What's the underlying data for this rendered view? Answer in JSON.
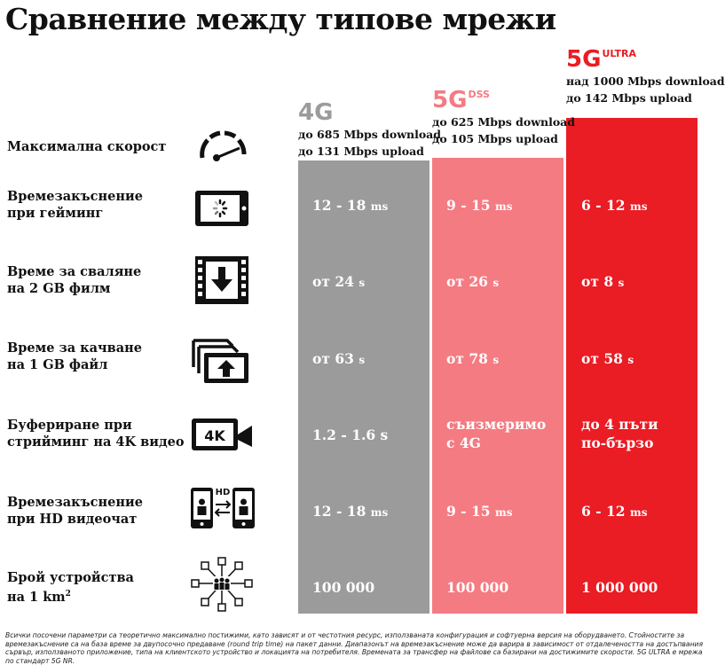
{
  "title": "Сравнение между типове мрежи",
  "columns": [
    {
      "name": "4G",
      "sup": "",
      "download": "до 685 Mbps download",
      "upload": "до 131 Mbps upload",
      "color": "#9b9b9b"
    },
    {
      "name": "5G",
      "sup": "DSS",
      "download": "до 625 Mbps download",
      "upload": "до 105 Mbps upload",
      "color": "#f47b82"
    },
    {
      "name": "5G",
      "sup": "ULTRA",
      "download": "над 1000 Mbps download",
      "upload": "до 142 Mbps upload",
      "color": "#ea1c24"
    }
  ],
  "rows": [
    {
      "label": "Максимална скорост",
      "icon": "speedometer-icon"
    },
    {
      "label_l1": "Времезакъснение",
      "label_l2": "при гейминг",
      "icon": "gaming-phone-icon",
      "values": [
        {
          "num": "12 - 18",
          "unit": "ms"
        },
        {
          "num": "9 - 15",
          "unit": "ms"
        },
        {
          "num": "6 - 12",
          "unit": "ms"
        }
      ]
    },
    {
      "label_l1": "Време за сваляне",
      "label_l2": "на 2 GB филм",
      "icon": "film-download-icon",
      "values": [
        {
          "num": "от 24",
          "unit": "s"
        },
        {
          "num": "от 26",
          "unit": "s"
        },
        {
          "num": "от 8",
          "unit": "s"
        }
      ]
    },
    {
      "label_l1": "Време за качване",
      "label_l2": "на 1 GB файл",
      "icon": "file-upload-icon",
      "values": [
        {
          "num": "от 63",
          "unit": "s"
        },
        {
          "num": "от 78",
          "unit": "s"
        },
        {
          "num": "от 58",
          "unit": "s"
        }
      ]
    },
    {
      "label_l1": "Буфериране при",
      "label_l2": "стрийминг на 4K видео",
      "icon": "4k-camera-icon",
      "icon_text": "4K",
      "values": [
        {
          "l1": "1.2 - 1.6 s"
        },
        {
          "l1": "съизмеримо",
          "l2": "с 4G"
        },
        {
          "l1": "до 4 пъти",
          "l2": "по-бързо"
        }
      ]
    },
    {
      "label_l1": "Времезакъснение",
      "label_l2": "при HD видеочат",
      "icon": "hd-videochat-icon",
      "icon_text": "HD",
      "values": [
        {
          "num": "12 - 18",
          "unit": "ms"
        },
        {
          "num": "9 - 15",
          "unit": "ms"
        },
        {
          "num": "6 - 12",
          "unit": "ms"
        }
      ]
    },
    {
      "label_l1": "Брой устройства",
      "label_l2": "на 1 km",
      "label_sup": "2",
      "icon": "devices-network-icon",
      "values": [
        {
          "l1": "100 000"
        },
        {
          "l1": "100 000"
        },
        {
          "l1": "1 000 000"
        }
      ]
    }
  ],
  "footnote": "Всички посочени параметри са теоретично максимално постижими, като зависят и от честотния ресурс, използваната конфигурация и софтуерна версия на оборудването. Стойностите за времезакъснение са на база време за двупосочно предаване (round trip time) на пакет данни. Диапазонът на времезакъснение може да варира в зависимост от отдалечеността на достъпвания сървър, използваното приложение, типа на клиентското устройство и локацията на потребителя. Времената за трансфер на файлове са базирани на достижимите скорости. 5G ULTRA е мрежа по стандарт 5G NR."
}
